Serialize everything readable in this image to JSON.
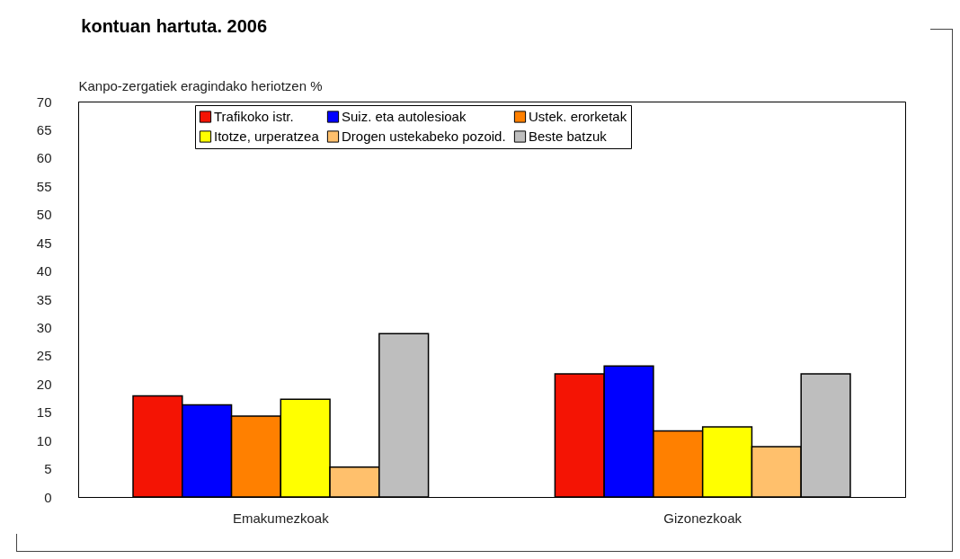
{
  "chart_data": {
    "type": "bar",
    "title": "kontuan hartuta. 2006",
    "ylabel": "Kanpo-zergatiek eragindako heriotzen %",
    "categories": [
      "Emakumezkoak",
      "Gizonezkoak"
    ],
    "series": [
      {
        "name": "Trafikoko istr.",
        "color": "#f41404",
        "values": [
          17.9,
          21.8
        ]
      },
      {
        "name": "Suiz. eta autolesioak",
        "color": "#0000ff",
        "values": [
          16.3,
          23.2
        ]
      },
      {
        "name": "Ustek. erorketak",
        "color": "#ff8000",
        "values": [
          14.3,
          11.7
        ]
      },
      {
        "name": "Itotze, urperatzea",
        "color": "#ffff00",
        "values": [
          17.3,
          12.4
        ]
      },
      {
        "name": "Drogen ustekabeko pozoid.",
        "color": "#ffc06c",
        "values": [
          5.3,
          8.9
        ]
      },
      {
        "name": "Beste batzuk",
        "color": "#bebebe",
        "values": [
          28.9,
          21.8
        ]
      }
    ],
    "ylim": [
      0,
      70
    ],
    "yticks": [
      0,
      5,
      10,
      15,
      20,
      25,
      30,
      35,
      40,
      45,
      50,
      55,
      60,
      65,
      70
    ],
    "grid": false,
    "legend": "top"
  }
}
